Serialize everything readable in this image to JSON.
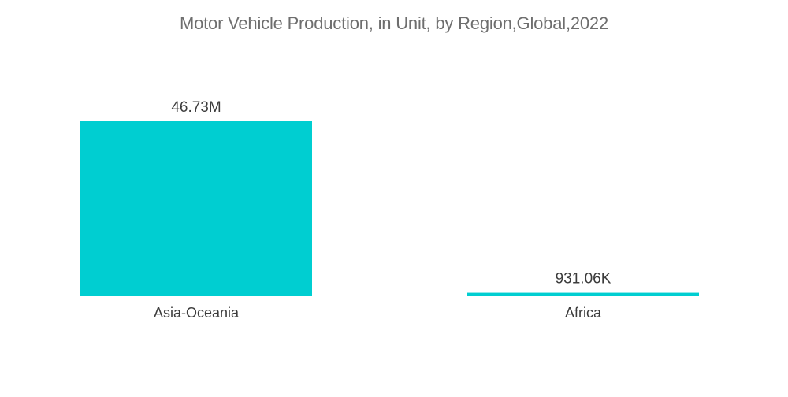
{
  "chart_data": {
    "type": "bar",
    "title": "Motor Vehicle Production, in Unit, by Region,Global,2022",
    "categories": [
      "Asia-Oceania",
      "Africa"
    ],
    "values": [
      46730000,
      931060
    ],
    "value_labels": [
      "46.73M",
      "931.06K"
    ],
    "xlabel": "",
    "ylabel": "",
    "ylim": [
      0,
      46730000
    ],
    "grid": false,
    "legend": "none",
    "bar_color": "#00ced1"
  }
}
